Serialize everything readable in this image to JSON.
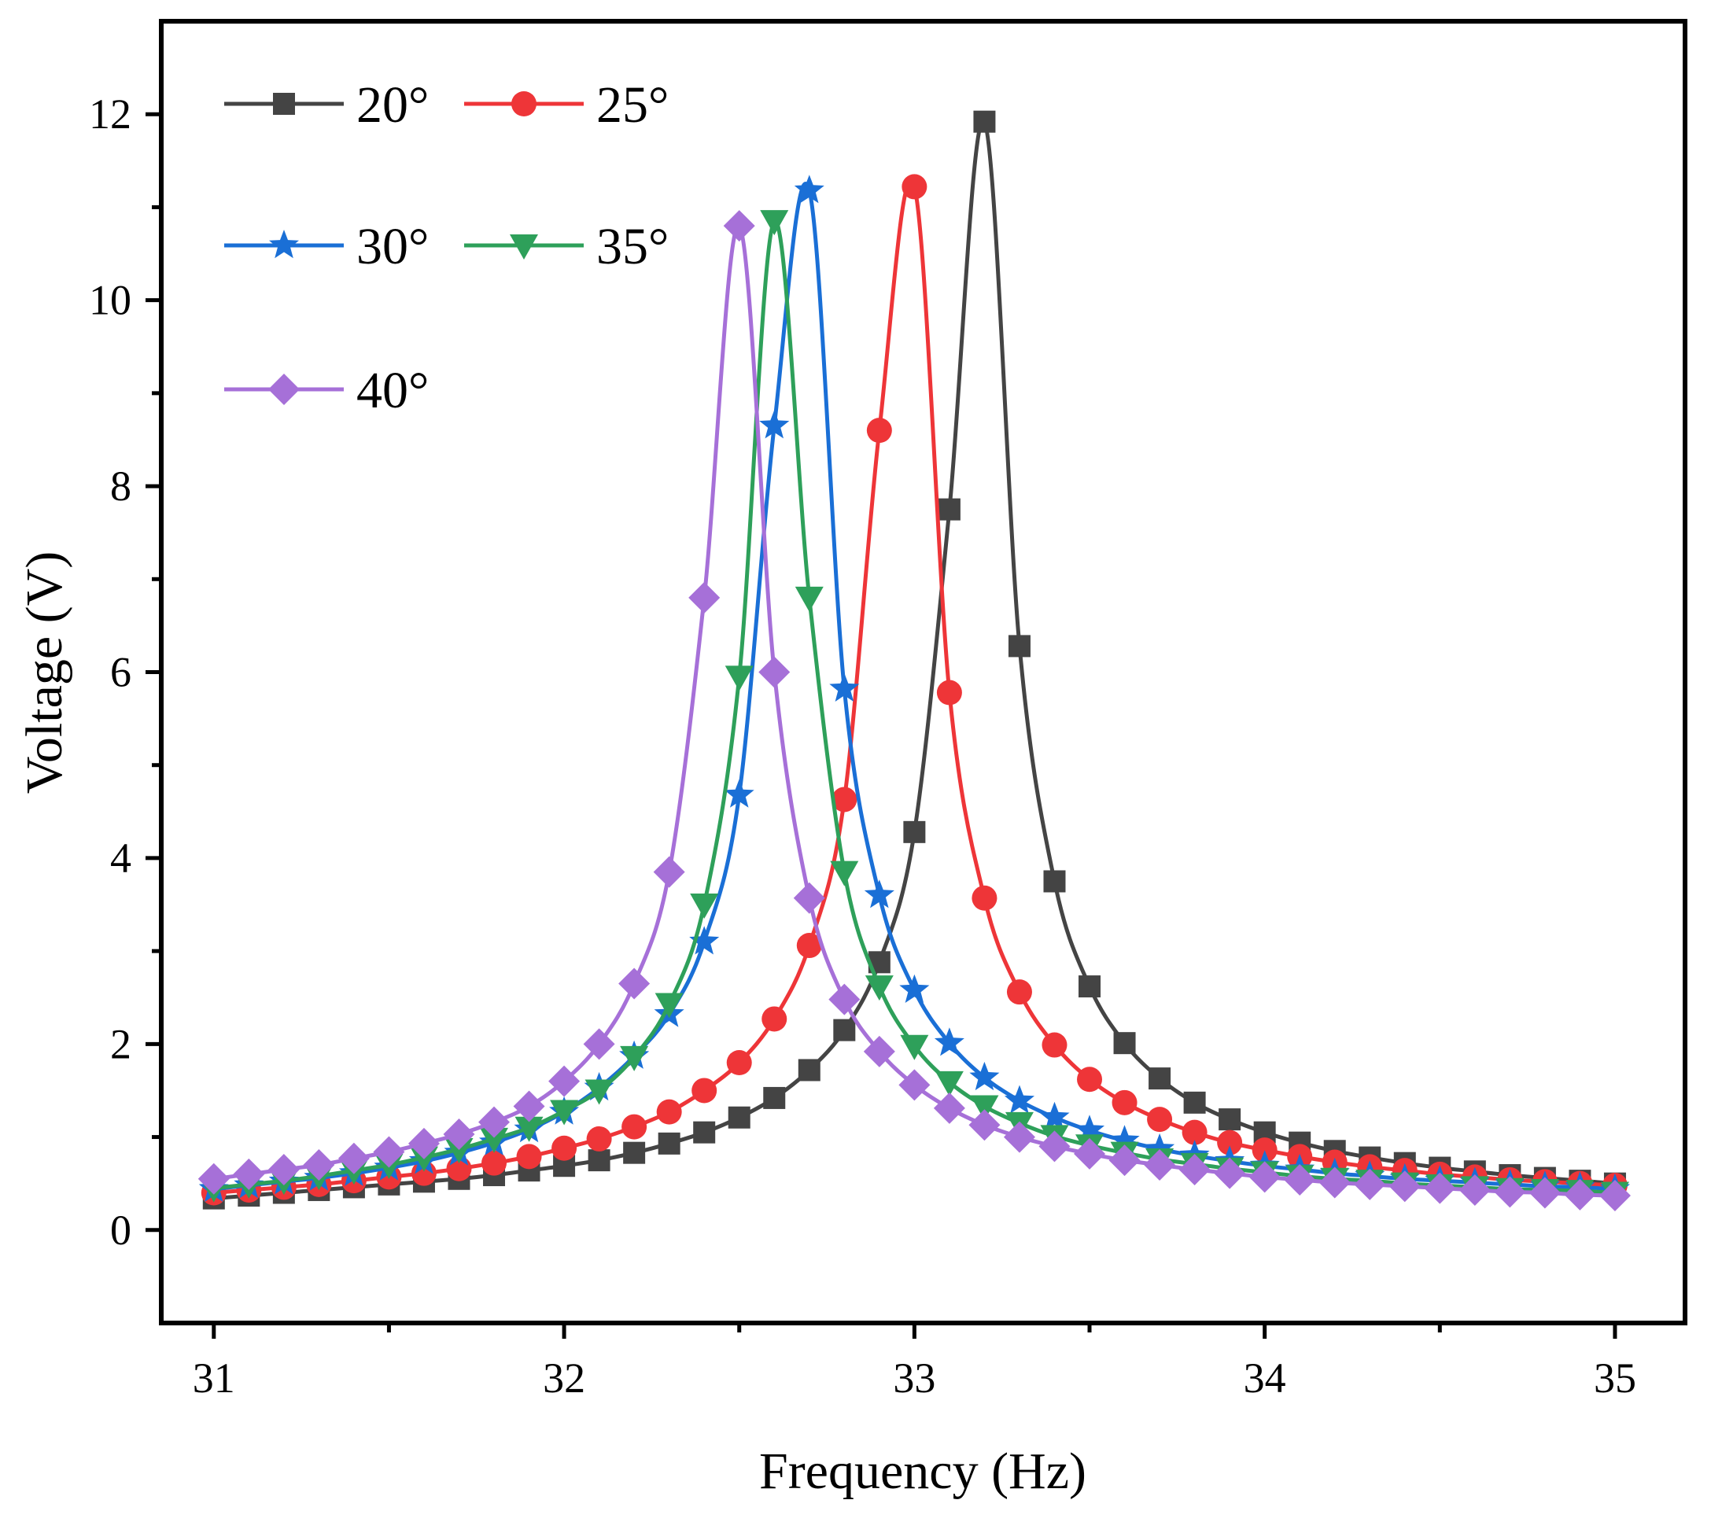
{
  "chart_data": {
    "type": "line",
    "title": "",
    "xlabel": "Frequency (Hz)",
    "ylabel": "Voltage (V)",
    "xlim": [
      30.85,
      35.2
    ],
    "ylim": [
      -1,
      13
    ],
    "x_ticks": [
      31,
      32,
      33,
      34,
      35
    ],
    "x_tick_labels": [
      "31",
      "32",
      "33",
      "34",
      "35"
    ],
    "y_ticks": [
      0,
      2,
      4,
      6,
      8,
      10,
      12
    ],
    "y_tick_labels": [
      "0",
      "2",
      "4",
      "6",
      "8",
      "10",
      "12"
    ],
    "x_minor_step": 0.5,
    "y_minor_step": 1,
    "grid": false,
    "legend_position": "top-left",
    "x": [
      31.0,
      31.1,
      31.2,
      31.3,
      31.4,
      31.5,
      31.6,
      31.7,
      31.8,
      31.9,
      32.0,
      32.1,
      32.2,
      32.3,
      32.4,
      32.5,
      32.6,
      32.7,
      32.8,
      32.9,
      33.0,
      33.1,
      33.2,
      33.3,
      33.4,
      33.5,
      33.6,
      33.7,
      33.8,
      33.9,
      34.0,
      34.1,
      34.2,
      34.3,
      34.4,
      34.5,
      34.6,
      34.7,
      34.8,
      34.9,
      35.0
    ],
    "series": [
      {
        "name": "20°",
        "color": "#444444",
        "marker": "square",
        "values": [
          0.34,
          0.37,
          0.4,
          0.43,
          0.46,
          0.49,
          0.52,
          0.55,
          0.59,
          0.64,
          0.69,
          0.75,
          0.83,
          0.93,
          1.05,
          1.21,
          1.42,
          1.72,
          2.15,
          2.88,
          4.28,
          7.75,
          11.92,
          6.28,
          3.75,
          2.62,
          2.01,
          1.63,
          1.37,
          1.19,
          1.05,
          0.94,
          0.85,
          0.78,
          0.72,
          0.67,
          0.63,
          0.59,
          0.56,
          0.53,
          0.5
        ]
      },
      {
        "name": "25°",
        "color": "#ee3538",
        "marker": "circle",
        "values": [
          0.4,
          0.43,
          0.46,
          0.49,
          0.53,
          0.57,
          0.61,
          0.66,
          0.72,
          0.79,
          0.88,
          0.98,
          1.11,
          1.27,
          1.5,
          1.8,
          2.27,
          3.06,
          4.63,
          8.6,
          11.22,
          5.78,
          3.57,
          2.56,
          1.99,
          1.62,
          1.37,
          1.19,
          1.05,
          0.94,
          0.86,
          0.79,
          0.73,
          0.68,
          0.64,
          0.6,
          0.57,
          0.54,
          0.52,
          0.5,
          0.48
        ]
      },
      {
        "name": "30°",
        "color": "#1a6fd6",
        "marker": "star",
        "values": [
          0.44,
          0.48,
          0.52,
          0.56,
          0.61,
          0.67,
          0.74,
          0.83,
          0.94,
          1.08,
          1.27,
          1.53,
          1.87,
          2.32,
          3.1,
          4.68,
          8.65,
          11.18,
          5.82,
          3.6,
          2.58,
          2.01,
          1.64,
          1.39,
          1.21,
          1.07,
          0.96,
          0.87,
          0.8,
          0.74,
          0.69,
          0.65,
          0.61,
          0.58,
          0.55,
          0.53,
          0.51,
          0.49,
          0.47,
          0.46,
          0.44
        ]
      },
      {
        "name": "35°",
        "color": "#2ea05a",
        "marker": "triangle-down",
        "values": [
          0.45,
          0.49,
          0.53,
          0.58,
          0.64,
          0.7,
          0.78,
          0.87,
          0.98,
          1.1,
          1.28,
          1.5,
          1.86,
          2.43,
          3.5,
          5.95,
          10.85,
          6.8,
          3.85,
          2.62,
          1.98,
          1.59,
          1.33,
          1.15,
          1.01,
          0.91,
          0.83,
          0.76,
          0.71,
          0.66,
          0.62,
          0.58,
          0.55,
          0.53,
          0.5,
          0.48,
          0.46,
          0.44,
          0.43,
          0.42,
          0.4
        ]
      },
      {
        "name": "40°",
        "color": "#a670d8",
        "marker": "diamond",
        "values": [
          0.55,
          0.6,
          0.65,
          0.7,
          0.77,
          0.84,
          0.93,
          1.03,
          1.16,
          1.33,
          1.6,
          2.0,
          2.65,
          3.85,
          6.8,
          10.8,
          6.0,
          3.57,
          2.48,
          1.92,
          1.56,
          1.31,
          1.13,
          1.0,
          0.9,
          0.82,
          0.75,
          0.7,
          0.65,
          0.61,
          0.57,
          0.54,
          0.51,
          0.49,
          0.47,
          0.45,
          0.43,
          0.41,
          0.4,
          0.38,
          0.37
        ]
      }
    ]
  }
}
